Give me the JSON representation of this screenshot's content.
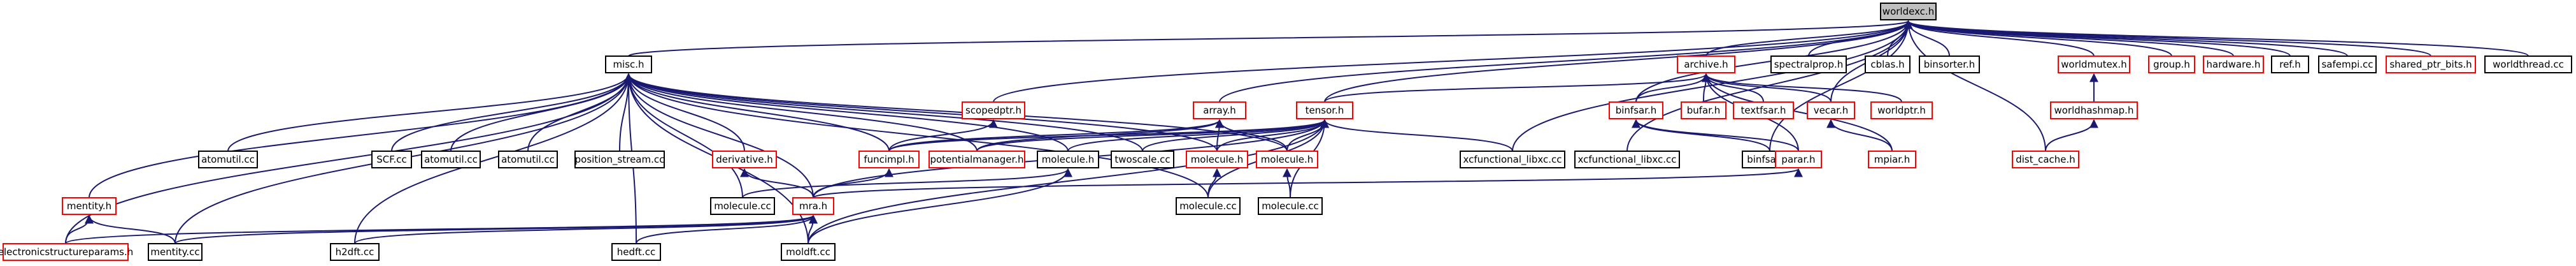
{
  "colors": {
    "edge": "#191970",
    "plain_border": "#000000",
    "red_border": "#ff0000",
    "root_fill": "#bfbfbf"
  },
  "nodes": {
    "worldexc_h": "worldexc.h",
    "misc_h": "misc.h",
    "scopedptr_h": "scopedptr.h",
    "array_h": "array.h",
    "tensor_h": "tensor.h",
    "archive_h": "archive.h",
    "spectralprop_h": "spectralprop.h",
    "cblas_h": "cblas.h",
    "binsorter_h": "binsorter.h",
    "worldmutex_h": "worldmutex.h",
    "group_h": "group.h",
    "hardware_h": "hardware.h",
    "ref_h": "ref.h",
    "safempi_cc": "safempi.cc",
    "shared_ptr_bits_h": "shared_ptr_bits.h",
    "worldthread_cc": "worldthread.cc",
    "binfsar_h": "binfsar.h",
    "bufar_h": "bufar.h",
    "textfsar_h": "textfsar.h",
    "vecar_h": "vecar.h",
    "worldptr_h": "worldptr.h",
    "worldhashmap_h": "worldhashmap.h",
    "mentity_h": "mentity.h",
    "atomutil_cc_1": "atomutil.cc",
    "scf_cc": "SCF.cc",
    "atomutil_cc_2": "atomutil.cc",
    "atomutil_cc_3": "atomutil.cc",
    "position_stream_cc": "position_stream.cc",
    "derivative_h": "derivative.h",
    "funcimpl_h": "funcimpl.h",
    "potentialmanager_h": "potentialmanager.h",
    "molecule_h_1": "molecule.h",
    "twoscale_cc": "twoscale.cc",
    "molecule_h_2": "molecule.h",
    "molecule_h_3": "molecule.h",
    "xcfunctional_libxc_cc_1": "xcfunctional_libxc.cc",
    "xcfunctional_libxc_cc_2": "xcfunctional_libxc.cc",
    "binfsar_cc": "binfsar.cc",
    "parar_h": "parar.h",
    "mpiar_h": "mpiar.h",
    "dist_cache_h": "dist_cache.h",
    "molecule_cc_1": "molecule.cc",
    "mra_h": "mra.h",
    "molecule_cc_2": "molecule.cc",
    "molecule_cc_3": "molecule.cc",
    "electronicstructureparams_h": "electronicstructureparams.h",
    "mentity_cc": "mentity.cc",
    "h2dft_cc": "h2dft.cc",
    "hedft_cc": "hedft.cc",
    "moldft_cc": "moldft.cc"
  }
}
